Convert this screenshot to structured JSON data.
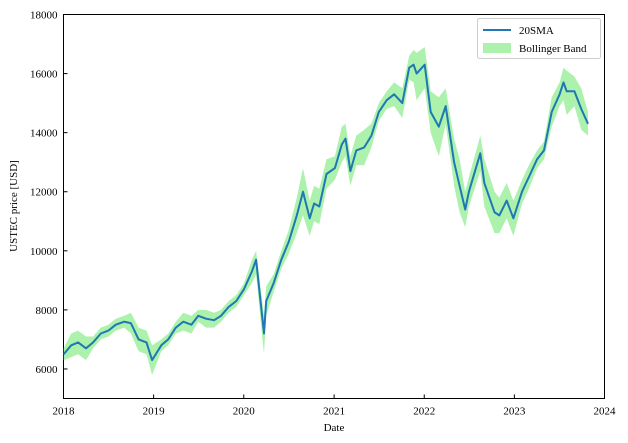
{
  "chart_data": {
    "type": "line",
    "xlabel": "Date",
    "ylabel": "USTEC price [USD]",
    "xlim": [
      "2018-01-01",
      "2024-01-01"
    ],
    "ylim": [
      5000,
      18000
    ],
    "x_ticks": [
      "2018",
      "2019",
      "2020",
      "2021",
      "2022",
      "2023",
      "2024"
    ],
    "y_ticks": [
      6000,
      8000,
      10000,
      12000,
      14000,
      16000,
      18000
    ],
    "legend_position": "top-right",
    "grid": false,
    "series": [
      {
        "name": "20SMA",
        "kind": "line",
        "color": "#1f77b4",
        "x": [
          "2018-01-02",
          "2018-02-01",
          "2018-03-01",
          "2018-04-02",
          "2018-05-01",
          "2018-06-01",
          "2018-07-02",
          "2018-08-01",
          "2018-09-04",
          "2018-10-01",
          "2018-11-01",
          "2018-12-03",
          "2018-12-26",
          "2019-02-01",
          "2019-03-01",
          "2019-04-01",
          "2019-05-01",
          "2019-06-03",
          "2019-07-01",
          "2019-08-01",
          "2019-09-03",
          "2019-10-01",
          "2019-11-01",
          "2019-12-02",
          "2020-01-02",
          "2020-02-03",
          "2020-02-20",
          "2020-03-23",
          "2020-04-01",
          "2020-05-01",
          "2020-06-01",
          "2020-07-01",
          "2020-08-03",
          "2020-08-28",
          "2020-09-24",
          "2020-10-12",
          "2020-11-02",
          "2020-12-01",
          "2021-01-04",
          "2021-02-01",
          "2021-02-16",
          "2021-03-08",
          "2021-04-01",
          "2021-05-03",
          "2021-06-01",
          "2021-07-01",
          "2021-08-02",
          "2021-09-01",
          "2021-10-04",
          "2021-11-01",
          "2021-11-19",
          "2021-12-01",
          "2022-01-03",
          "2022-01-27",
          "2022-03-01",
          "2022-03-29",
          "2022-05-02",
          "2022-05-24",
          "2022-06-16",
          "2022-07-01",
          "2022-08-16",
          "2022-09-01",
          "2022-10-13",
          "2022-11-01",
          "2022-12-01",
          "2022-12-28",
          "2023-02-01",
          "2023-03-01",
          "2023-04-03",
          "2023-05-01",
          "2023-06-01",
          "2023-07-03",
          "2023-07-19",
          "2023-08-01",
          "2023-09-01",
          "2023-09-29",
          "2023-10-26"
        ],
        "y": [
          6500,
          6800,
          6900,
          6700,
          6900,
          7200,
          7300,
          7500,
          7600,
          7550,
          7000,
          6900,
          6300,
          6800,
          7000,
          7400,
          7600,
          7500,
          7800,
          7700,
          7650,
          7800,
          8100,
          8300,
          8700,
          9300,
          9700,
          7200,
          8300,
          8900,
          9700,
          10300,
          11200,
          12000,
          11100,
          11600,
          11500,
          12600,
          12800,
          13600,
          13800,
          12700,
          13400,
          13500,
          13900,
          14700,
          15100,
          15300,
          15000,
          16200,
          16300,
          16000,
          16300,
          14700,
          14200,
          14900,
          13000,
          12200,
          11400,
          12000,
          13300,
          12300,
          11300,
          11200,
          11700,
          11100,
          12000,
          12500,
          13100,
          13400,
          14700,
          15300,
          15700,
          15400,
          15400,
          14800,
          14300
        ]
      },
      {
        "name": "Bollinger Band",
        "kind": "band",
        "color": "#90ee90",
        "x": [
          "2018-01-02",
          "2018-02-01",
          "2018-03-01",
          "2018-04-02",
          "2018-05-01",
          "2018-06-01",
          "2018-07-02",
          "2018-08-01",
          "2018-09-04",
          "2018-10-01",
          "2018-11-01",
          "2018-12-03",
          "2018-12-26",
          "2019-02-01",
          "2019-03-01",
          "2019-04-01",
          "2019-05-01",
          "2019-06-03",
          "2019-07-01",
          "2019-08-01",
          "2019-09-03",
          "2019-10-01",
          "2019-11-01",
          "2019-12-02",
          "2020-01-02",
          "2020-02-03",
          "2020-02-20",
          "2020-03-23",
          "2020-04-01",
          "2020-05-01",
          "2020-06-01",
          "2020-07-01",
          "2020-08-03",
          "2020-08-28",
          "2020-09-24",
          "2020-10-12",
          "2020-11-02",
          "2020-12-01",
          "2021-01-04",
          "2021-02-01",
          "2021-02-16",
          "2021-03-08",
          "2021-04-01",
          "2021-05-03",
          "2021-06-01",
          "2021-07-01",
          "2021-08-02",
          "2021-09-01",
          "2021-10-04",
          "2021-11-01",
          "2021-11-19",
          "2021-12-01",
          "2022-01-03",
          "2022-01-27",
          "2022-03-01",
          "2022-03-29",
          "2022-05-02",
          "2022-05-24",
          "2022-06-16",
          "2022-07-01",
          "2022-08-16",
          "2022-09-01",
          "2022-10-13",
          "2022-11-01",
          "2022-12-01",
          "2022-12-28",
          "2023-02-01",
          "2023-03-01",
          "2023-04-03",
          "2023-05-01",
          "2023-06-01",
          "2023-07-03",
          "2023-07-19",
          "2023-08-01",
          "2023-09-01",
          "2023-09-29",
          "2023-10-26"
        ],
        "lower": [
          6300,
          6400,
          6500,
          6300,
          6700,
          7000,
          7100,
          7300,
          7400,
          7200,
          6600,
          6500,
          5800,
          6600,
          6800,
          7200,
          7300,
          7200,
          7600,
          7400,
          7400,
          7600,
          7900,
          8100,
          8500,
          8900,
          9200,
          6500,
          7800,
          8600,
          9400,
          9900,
          10600,
          11200,
          10500,
          11000,
          10900,
          12100,
          12400,
          13000,
          13200,
          12200,
          12900,
          12900,
          13500,
          14400,
          14800,
          14900,
          14500,
          15800,
          15700,
          15100,
          15500,
          14000,
          13200,
          14300,
          12200,
          11300,
          10800,
          11500,
          12700,
          11500,
          10600,
          10600,
          11100,
          10500,
          11600,
          12100,
          12800,
          13100,
          14200,
          14900,
          15100,
          14600,
          14900,
          14100,
          13900
        ],
        "upper": [
          6700,
          7200,
          7300,
          7100,
          7100,
          7400,
          7500,
          7700,
          7800,
          7900,
          7400,
          7300,
          6800,
          7000,
          7200,
          7600,
          7900,
          7800,
          8000,
          8000,
          7900,
          8000,
          8300,
          8500,
          8900,
          9700,
          10000,
          7800,
          8800,
          9200,
          10000,
          10700,
          11800,
          12800,
          11700,
          12200,
          12100,
          13100,
          13200,
          14200,
          14300,
          13200,
          13900,
          14100,
          14300,
          15000,
          15400,
          15700,
          15500,
          16600,
          16800,
          16700,
          16900,
          15400,
          15200,
          15500,
          13800,
          13100,
          12000,
          12500,
          13900,
          13100,
          12000,
          11800,
          12300,
          11700,
          12400,
          12900,
          13400,
          13700,
          15200,
          15700,
          16200,
          16100,
          15900,
          15500,
          14700
        ]
      }
    ]
  }
}
